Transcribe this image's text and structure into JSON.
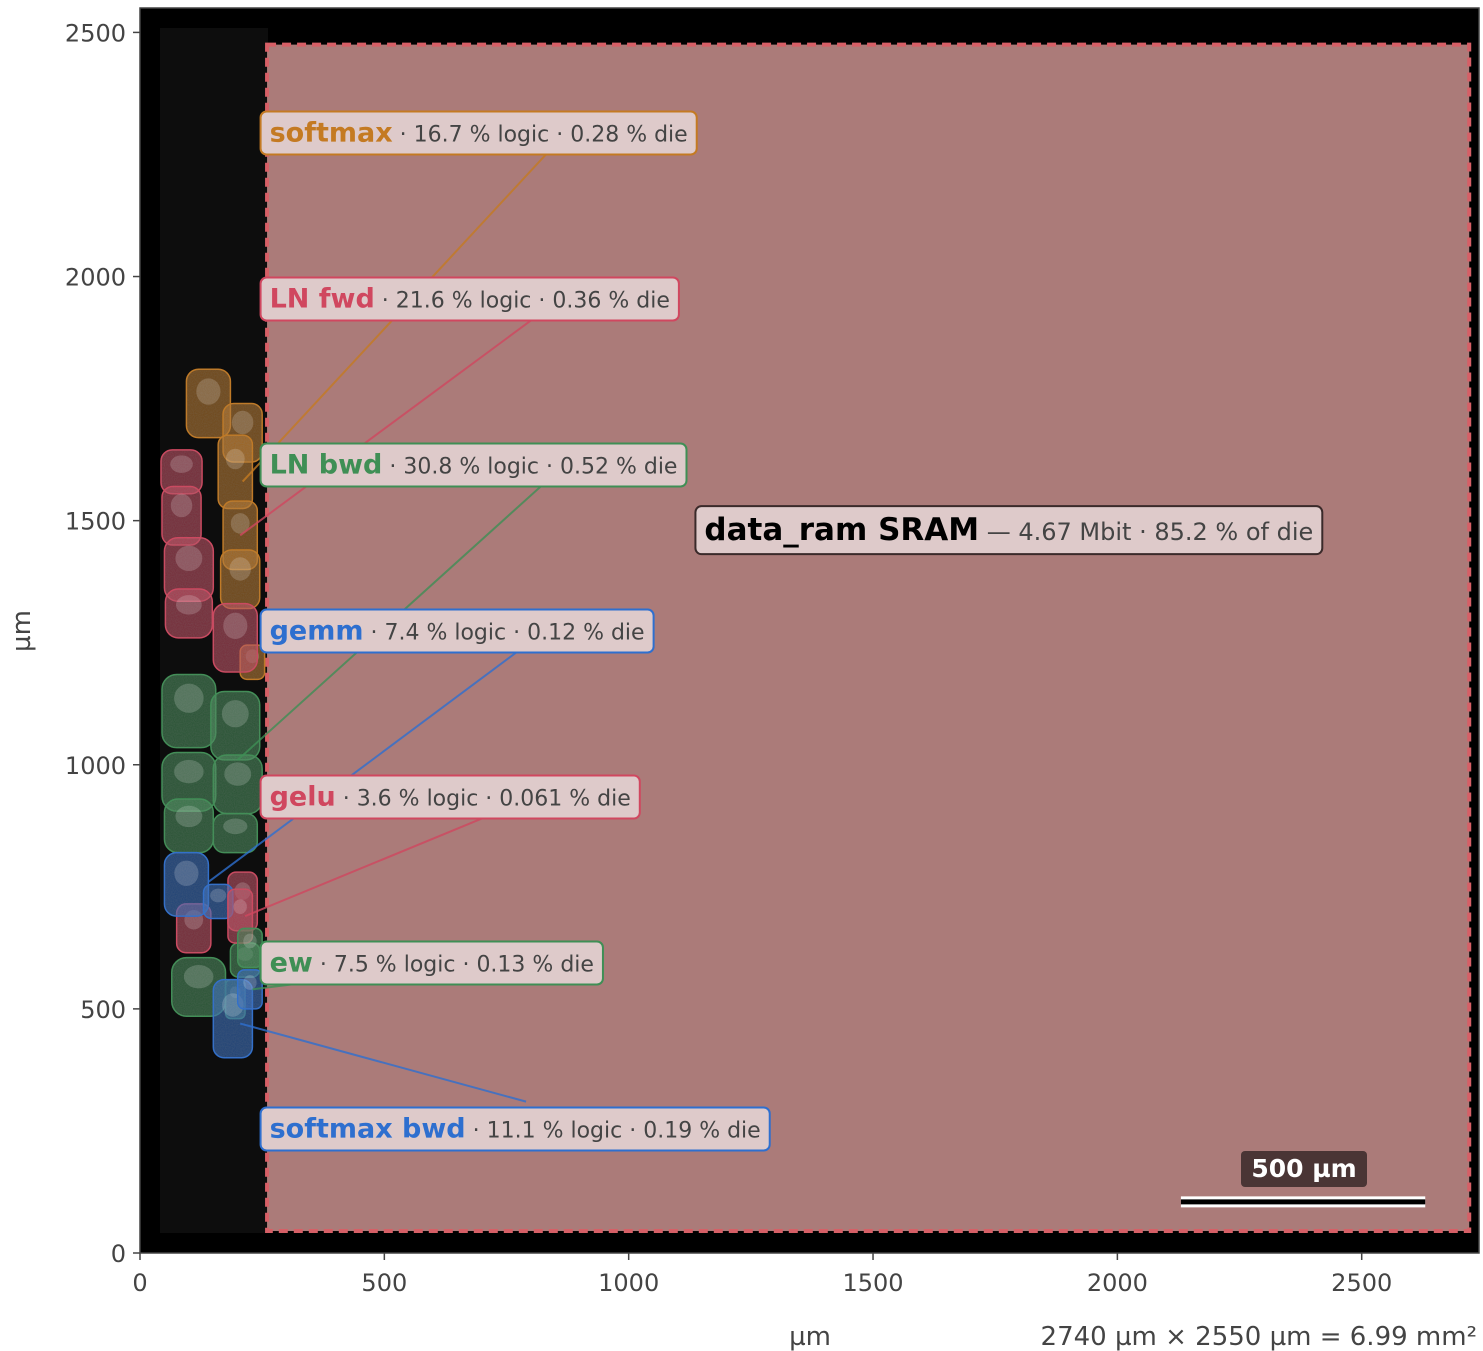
{
  "chart_data": {
    "type": "layout-map",
    "xlabel": "µm",
    "ylabel": "µm",
    "xlim": [
      0,
      2740
    ],
    "ylim": [
      0,
      2550
    ],
    "xticks": [
      0,
      500,
      1000,
      1500,
      2000,
      2500
    ],
    "yticks": [
      0,
      500,
      1000,
      1500,
      2000,
      2500
    ],
    "grid": false,
    "die_summary": "2740 µm × 2550 µm = 6.99 mm²",
    "scale_bar": {
      "label": "500 µm",
      "length": 500,
      "x0": 2130,
      "y": 115
    },
    "sram": {
      "name": "data_ram SRAM",
      "detail": "— 4.67 Mbit  ·  85.2 % of die",
      "x": [
        260,
        2720
      ],
      "y": [
        45,
        2475
      ],
      "color": "#d65f66",
      "label_pos": [
        1155,
        1460
      ]
    },
    "modules": [
      {
        "name": "softmax",
        "logic": "16.7 % logic",
        "die": "0.28 % die",
        "color": "#c47a22",
        "label_pos": [
          390,
          2295
        ],
        "anchor": [
          210,
          1580
        ],
        "leader_from": [
          840,
          2260
        ],
        "blobs": [
          [
            140,
            1740,
            45,
            70
          ],
          [
            210,
            1680,
            40,
            60
          ],
          [
            195,
            1600,
            35,
            75
          ],
          [
            205,
            1470,
            35,
            70
          ],
          [
            205,
            1380,
            40,
            60
          ],
          [
            230,
            1210,
            25,
            35
          ]
        ]
      },
      {
        "name": "LN fwd",
        "logic": "21.6 % logic",
        "die": "0.36 % die",
        "color": "#d0475f",
        "label_pos": [
          390,
          1955
        ],
        "anchor": [
          205,
          1470
        ],
        "leader_from": [
          800,
          1910
        ],
        "blobs": [
          [
            85,
            1600,
            42,
            45
          ],
          [
            85,
            1510,
            40,
            60
          ],
          [
            100,
            1400,
            50,
            65
          ],
          [
            100,
            1310,
            48,
            50
          ],
          [
            195,
            1260,
            45,
            70
          ],
          [
            110,
            665,
            35,
            50
          ],
          [
            210,
            720,
            30,
            60
          ]
        ]
      },
      {
        "name": "LN bwd",
        "logic": "30.8 % logic",
        "die": "0.52 % die",
        "color": "#3f8f55",
        "label_pos": [
          390,
          1615
        ],
        "anchor": [
          200,
          1010
        ],
        "leader_from": [
          820,
          1570
        ],
        "blobs": [
          [
            100,
            1110,
            55,
            75
          ],
          [
            195,
            1080,
            50,
            70
          ],
          [
            100,
            965,
            55,
            60
          ],
          [
            200,
            960,
            50,
            60
          ],
          [
            100,
            875,
            50,
            55
          ],
          [
            195,
            860,
            45,
            40
          ],
          [
            120,
            545,
            55,
            60
          ],
          [
            215,
            600,
            30,
            35
          ]
        ]
      },
      {
        "name": "gemm",
        "logic": "7.4 % logic",
        "die": "0.12 % die",
        "color": "#2e6fcf",
        "label_pos": [
          390,
          1275
        ],
        "anchor": [
          140,
          760
        ],
        "leader_from": [
          770,
          1230
        ],
        "blobs": [
          [
            95,
            755,
            45,
            65
          ],
          [
            160,
            720,
            30,
            35
          ]
        ]
      },
      {
        "name": "gelu",
        "logic": "3.6 % logic",
        "die": "0.061 % die",
        "color": "#d0475f",
        "label_pos": [
          390,
          935
        ],
        "anchor": [
          215,
          690
        ],
        "leader_from": [
          700,
          890
        ],
        "blobs": [
          [
            205,
            690,
            25,
            55
          ]
        ]
      },
      {
        "name": "ew",
        "logic": "7.5 % logic",
        "die": "0.13 % die",
        "color": "#3f8f55",
        "label_pos": [
          390,
          595
        ],
        "anchor": [
          230,
          540
        ],
        "leader_from": [
          390,
          560
        ],
        "blobs": [
          [
            225,
            625,
            25,
            40
          ],
          [
            195,
            520,
            20,
            40
          ]
        ]
      },
      {
        "name": "softmax bwd",
        "logic": "11.1 % logic",
        "die": "0.19 % die",
        "color": "#2e6fcf",
        "label_pos": [
          390,
          255
        ],
        "anchor": [
          205,
          470
        ],
        "leader_from": [
          790,
          310
        ],
        "blobs": [
          [
            190,
            480,
            40,
            80
          ],
          [
            225,
            540,
            25,
            40
          ]
        ]
      }
    ]
  }
}
